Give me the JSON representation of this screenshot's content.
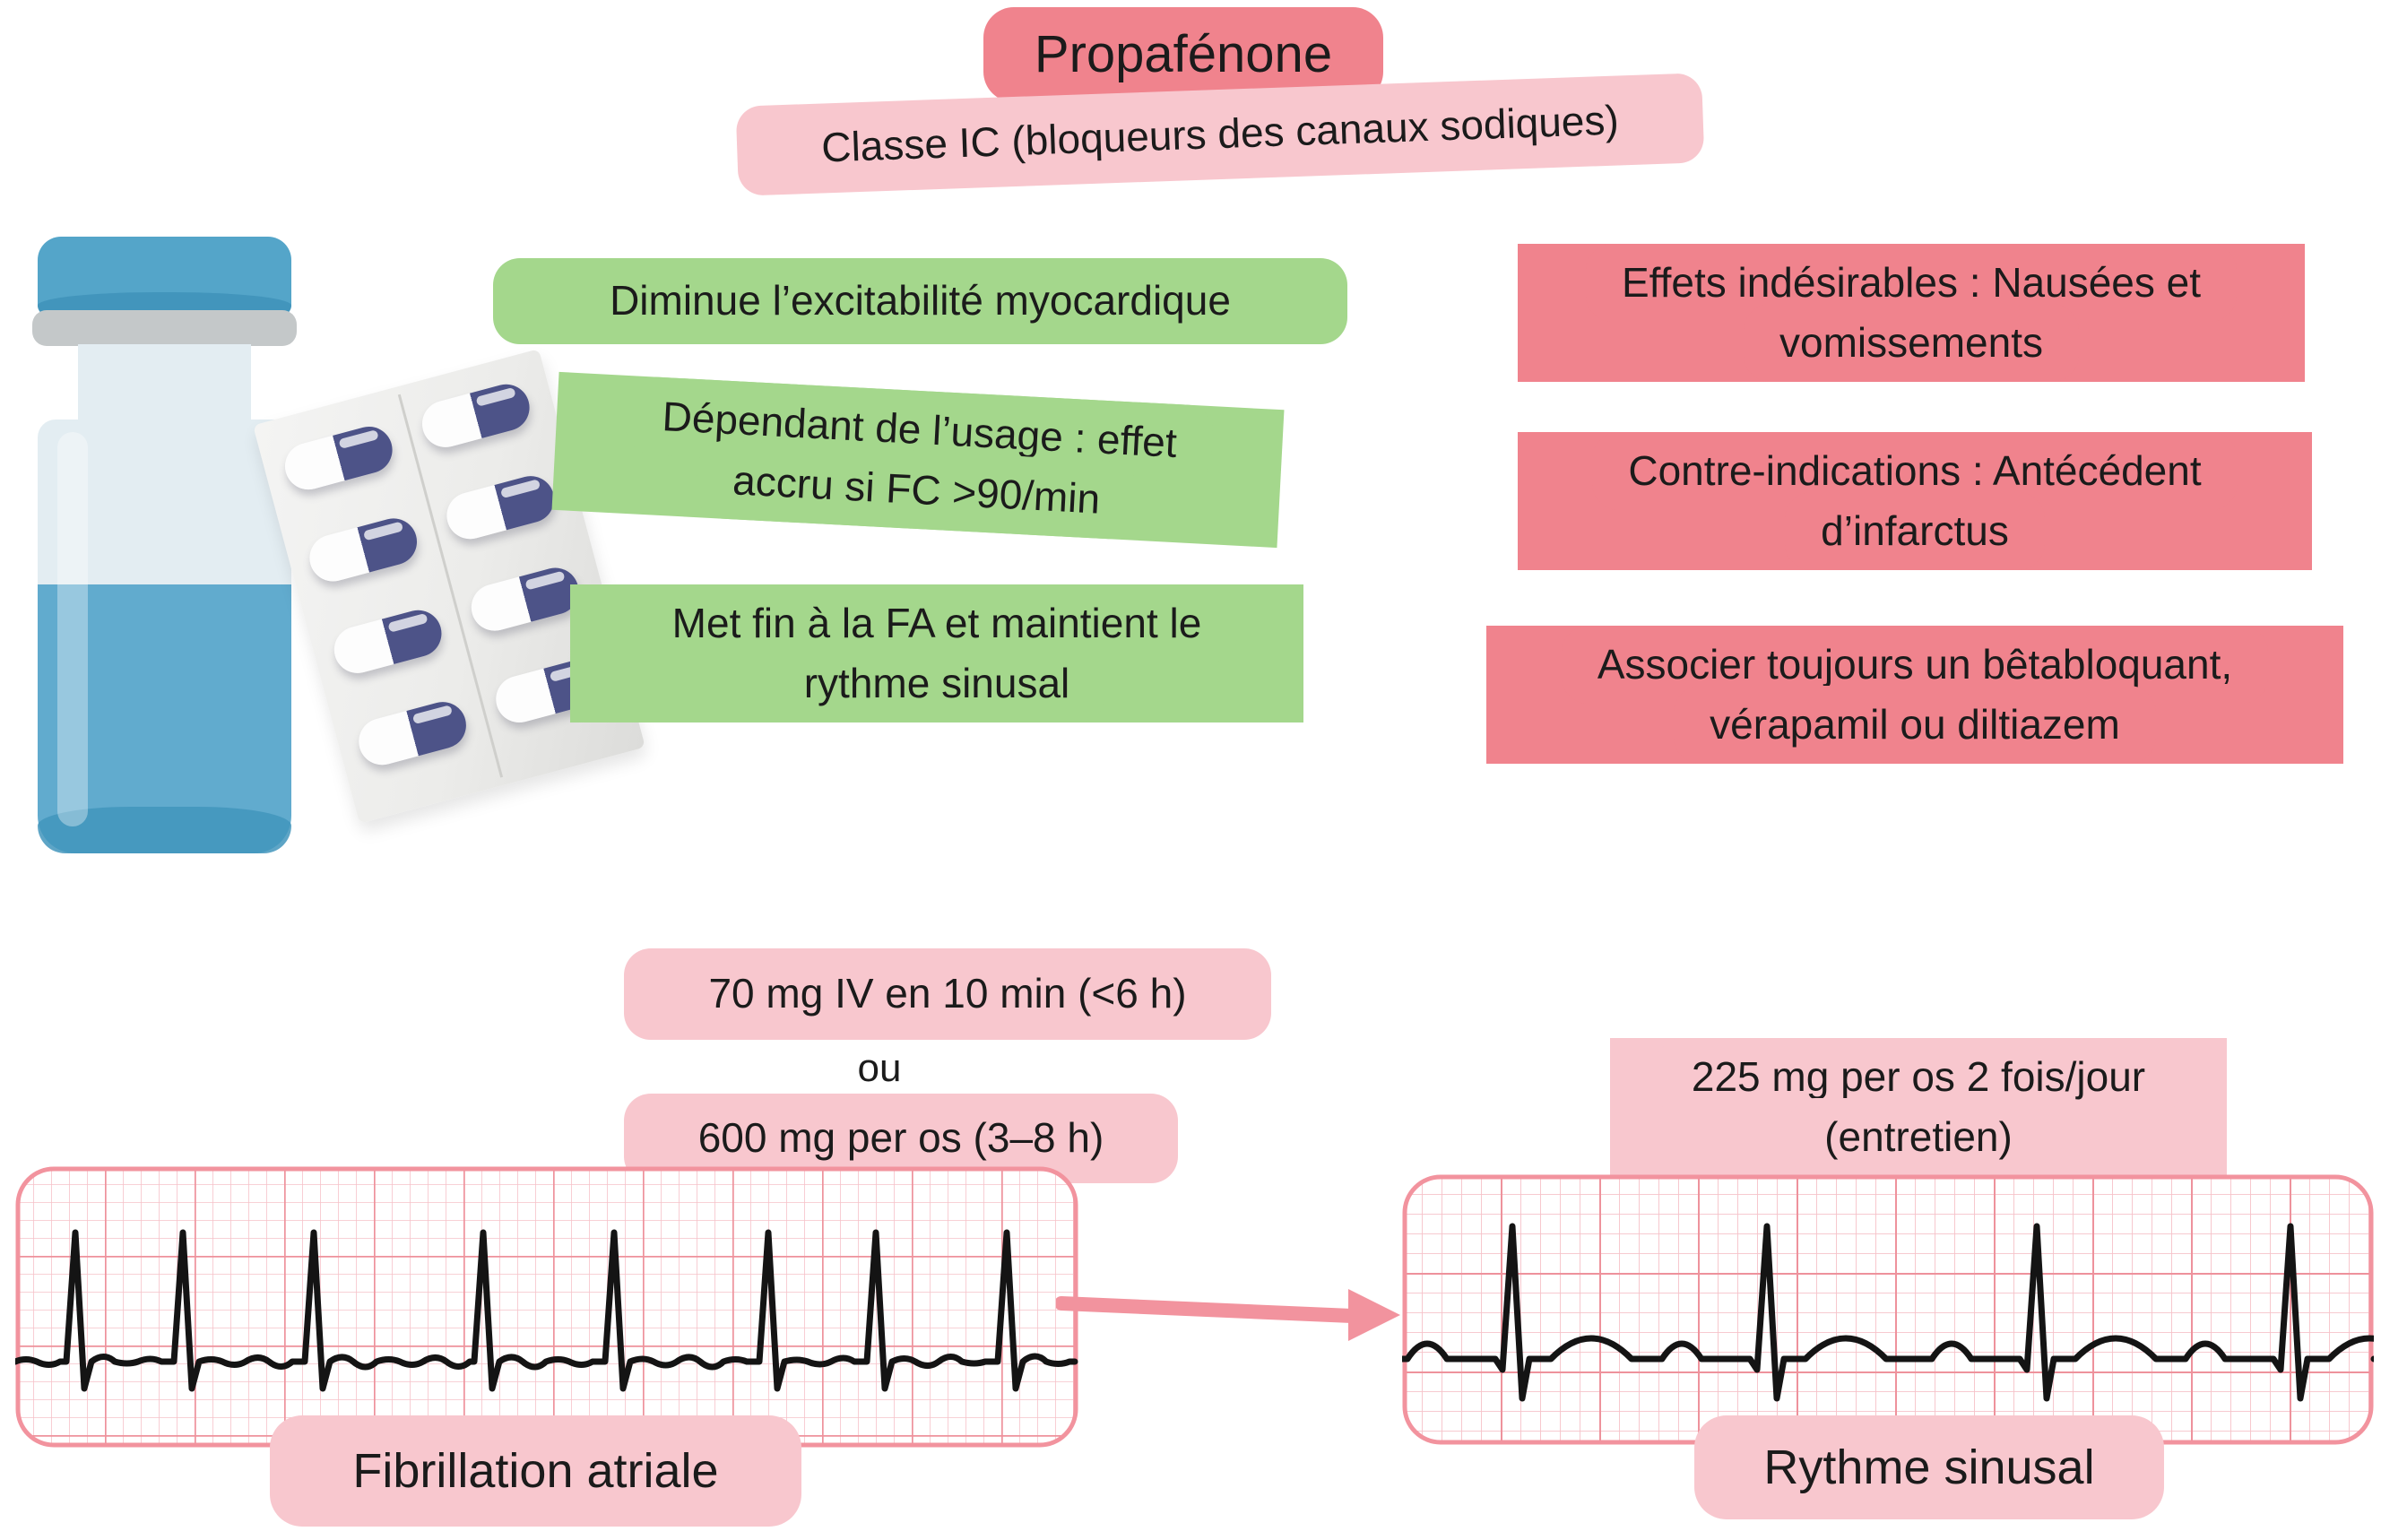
{
  "title": "Propafénone",
  "subtitle": "Classe IC (bloqueurs des canaux sodiques)",
  "green_badges": [
    {
      "lines": [
        "Diminue l’excitabilité myocardique"
      ]
    },
    {
      "lines": [
        "Dépendant de l’usage : effet",
        "accru si FC >90/min"
      ]
    },
    {
      "lines": [
        "Met fin à la FA et maintient le",
        "rythme sinusal"
      ]
    }
  ],
  "red_badges": [
    {
      "lines": [
        "Effets indésirables : Nausées et",
        "vomissements"
      ]
    },
    {
      "lines": [
        "Contre-indications : Antécédent",
        "d’infarctus"
      ]
    },
    {
      "lines": [
        "Associer toujours un bêtabloquant,",
        "vérapamil ou diltiazem"
      ]
    }
  ],
  "dosing": {
    "iv": "70 mg IV en 10 min (<6 h)",
    "or": "ou",
    "oral": "600 mg per os (3–8 h)",
    "maintenance_line1": "225 mg per os 2 fois/jour",
    "maintenance_line2": "(entretien)"
  },
  "ecg": {
    "before_label": "Fibrillation atriale",
    "after_label": "Rythme sinusal"
  },
  "colors": {
    "badge_red": "#f0838d",
    "badge_pink": "#f8c7ce",
    "badge_green": "#a4d78c",
    "arrow_pink": "#f2939e",
    "grid_minor": "#f6c2c9",
    "grid_major": "#ee929c",
    "trace_black": "#141414",
    "vial_blue": "#54a5c9",
    "vial_blue_dark": "#4295bc",
    "vial_liquid": "#61abce",
    "vial_glass": "#e3edf2",
    "vial_gray": "#c4c8c9",
    "capsule_navy": "#4d5388"
  }
}
